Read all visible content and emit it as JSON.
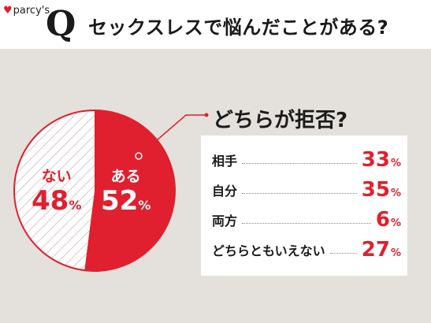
{
  "header": {
    "brand": "parcy's",
    "q_letter": "Q",
    "question": "セックスレスで悩んだことがある?"
  },
  "colors": {
    "accent": "#e0202e",
    "background": "#e4e0dc",
    "hatch": "#c9b8b8"
  },
  "chart_data": [
    {
      "type": "pie",
      "slices": [
        {
          "label": "ある",
          "value": 52
        },
        {
          "label": "ない",
          "value": 48
        }
      ],
      "unit": "%"
    },
    {
      "type": "table",
      "title": "どちらが拒否?",
      "unit": "%",
      "rows": [
        {
          "label": "相手",
          "value": 33
        },
        {
          "label": "自分",
          "value": 35
        },
        {
          "label": "両方",
          "value": 6
        },
        {
          "label": "どちらともいえない",
          "value": 27
        }
      ]
    }
  ]
}
